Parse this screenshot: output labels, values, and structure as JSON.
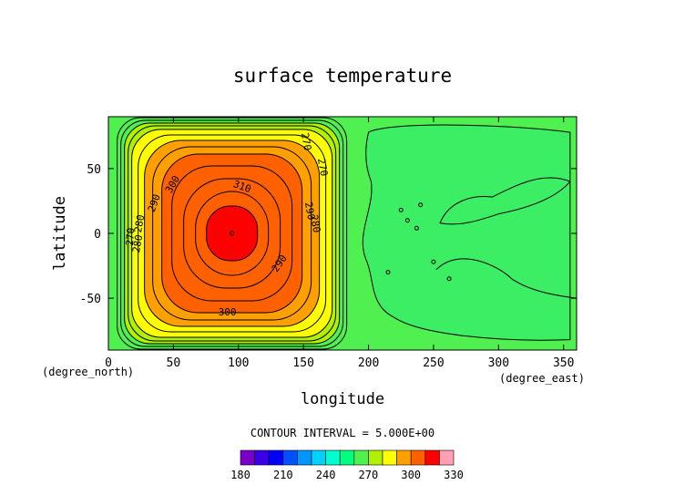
{
  "chart_data": {
    "type": "heatmap",
    "title": "surface temperature",
    "xlabel": "longitude",
    "ylabel": "latitude",
    "x_unit": "(degree_east)",
    "y_unit": "(degree_north)",
    "xlim": [
      0,
      360
    ],
    "ylim": [
      -90,
      90
    ],
    "xticks": [
      "0",
      "50",
      "100",
      "150",
      "200",
      "250",
      "300",
      "350"
    ],
    "yticks": [
      "-50",
      "0",
      "50"
    ],
    "contour_interval_text": "CONTOUR INTERVAL = 5.000E+00",
    "contour_labels": [
      "310",
      "300",
      "300",
      "290",
      "290",
      "290",
      "280",
      "280",
      "280",
      "270",
      "270",
      "270"
    ],
    "hotspot_center": {
      "lon": 95,
      "lat": 0
    },
    "colorbar": {
      "levels": [
        180,
        190,
        200,
        210,
        220,
        230,
        240,
        250,
        260,
        270,
        280,
        290,
        300,
        310,
        320,
        330
      ],
      "tick_labels": [
        "180",
        "210",
        "240",
        "270",
        "300",
        "330"
      ],
      "colors": [
        "#7a00c8",
        "#3a00e6",
        "#0000ff",
        "#0050ff",
        "#0096ff",
        "#00d2ff",
        "#00ffd0",
        "#00ff80",
        "#50f050",
        "#b0f000",
        "#ffff00",
        "#ffa000",
        "#ff6000",
        "#ff0000",
        "#ffa0b4"
      ]
    }
  }
}
